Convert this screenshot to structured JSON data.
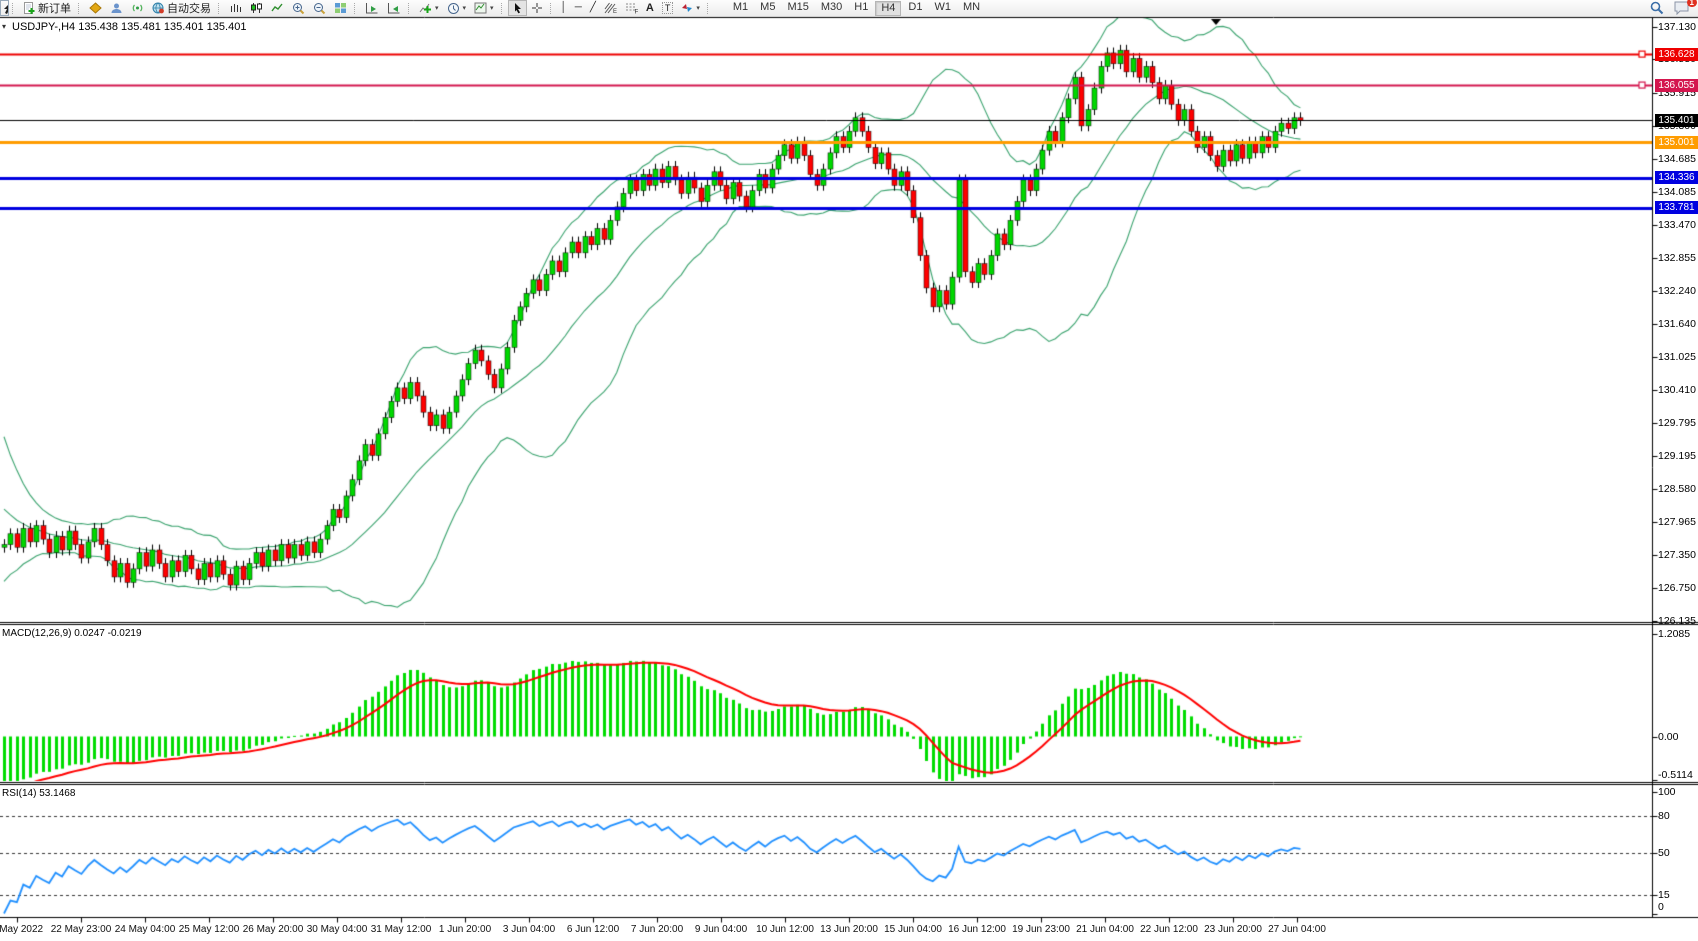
{
  "toolbar": {
    "new_order_label": "新订单",
    "auto_trading_label": "自动交易",
    "timeframes": [
      "M1",
      "M5",
      "M15",
      "M30",
      "H1",
      "H4",
      "D1",
      "W1",
      "MN"
    ],
    "active_timeframe": "H4",
    "chat_badge": "1"
  },
  "chart": {
    "title": "USDJPY-,H4 135.438 135.481 135.401 135.401",
    "macd_label": "MACD(12,26,9) 0.0247 -0.0219",
    "rsi_label": "RSI(14) 53.1468"
  },
  "chart_data": {
    "type": "candlestick",
    "symbol": "USDJPY-",
    "timeframe": "H4",
    "title": "USDJPY-,H4",
    "ohlc_display": {
      "open": "135.438",
      "high": "135.481",
      "low": "135.401",
      "close": "135.401"
    },
    "price_range": [
      126.135,
      137.13
    ],
    "price_axis_ticks": [
      137.13,
      136.53,
      135.915,
      135.3,
      134.685,
      134.085,
      133.47,
      132.855,
      132.24,
      131.64,
      131.025,
      130.41,
      129.795,
      129.195,
      128.58,
      127.965,
      127.35,
      126.75,
      126.135
    ],
    "current_price": {
      "value": 135.401,
      "label": "135.401",
      "color": "#000000"
    },
    "levels": [
      {
        "price": 136.628,
        "label": "136.628",
        "color": "#ee0000",
        "width": 2,
        "handle": true
      },
      {
        "price": 136.055,
        "label": "136.055",
        "color": "#d4164e",
        "width": 2,
        "handle": true
      },
      {
        "price": 135.001,
        "label": "135.001",
        "color": "#ff9c00",
        "width": 3,
        "handle": false
      },
      {
        "price": 134.336,
        "label": "134.336",
        "color": "#0000e0",
        "width": 3,
        "handle": false
      },
      {
        "price": 133.781,
        "label": "133.781",
        "color": "#0000e0",
        "width": 3,
        "handle": false
      }
    ],
    "x_axis_labels": [
      "9 May 2022",
      "22 May 23:00",
      "24 May 04:00",
      "25 May 12:00",
      "26 May 20:00",
      "30 May 04:00",
      "31 May 12:00",
      "1 Jun 20:00",
      "3 Jun 04:00",
      "6 Jun 12:00",
      "7 Jun 20:00",
      "9 Jun 04:00",
      "10 Jun 12:00",
      "13 Jun 20:00",
      "15 Jun 04:00",
      "16 Jun 12:00",
      "19 Jun 23:00",
      "21 Jun 04:00",
      "22 Jun 12:00",
      "23 Jun 20:00",
      "27 Jun 04:00"
    ],
    "seed_closes": [
      130.3,
      129.9,
      129.5,
      129.2,
      128.9,
      128.65,
      128.45,
      128.3,
      128.15,
      128.05,
      127.95,
      127.9,
      127.85,
      127.8,
      127.75,
      127.7,
      127.7,
      127.65,
      127.6,
      127.6
    ],
    "closes": [
      127.55,
      127.75,
      127.5,
      127.85,
      127.6,
      127.9,
      127.65,
      127.4,
      127.7,
      127.45,
      127.8,
      127.55,
      127.3,
      127.6,
      127.85,
      127.55,
      127.25,
      126.95,
      127.2,
      126.85,
      127.1,
      127.4,
      127.15,
      127.45,
      127.2,
      126.95,
      127.25,
      127.05,
      127.35,
      127.1,
      126.9,
      127.2,
      126.95,
      127.25,
      127.0,
      126.8,
      127.15,
      126.9,
      127.2,
      127.4,
      127.15,
      127.45,
      127.25,
      127.55,
      127.3,
      127.55,
      127.35,
      127.6,
      127.4,
      127.65,
      127.9,
      128.2,
      128.05,
      128.45,
      128.75,
      129.1,
      129.4,
      129.2,
      129.6,
      129.9,
      130.2,
      130.45,
      130.25,
      130.55,
      130.3,
      130.0,
      129.75,
      129.95,
      129.7,
      130.0,
      130.3,
      130.6,
      130.9,
      131.15,
      130.95,
      130.7,
      130.45,
      130.8,
      131.2,
      131.7,
      131.95,
      132.2,
      132.45,
      132.25,
      132.55,
      132.8,
      132.6,
      132.95,
      133.15,
      132.95,
      133.25,
      133.1,
      133.4,
      133.2,
      133.55,
      133.8,
      134.05,
      134.3,
      134.1,
      134.4,
      134.2,
      134.5,
      134.25,
      134.55,
      134.3,
      134.05,
      134.35,
      134.15,
      133.9,
      134.2,
      134.45,
      134.2,
      133.95,
      134.25,
      134.0,
      133.8,
      134.1,
      134.4,
      134.15,
      134.5,
      134.75,
      134.95,
      134.7,
      135.0,
      134.75,
      134.4,
      134.2,
      134.5,
      134.8,
      135.1,
      134.9,
      135.2,
      135.45,
      135.2,
      134.9,
      134.6,
      134.8,
      134.5,
      134.2,
      134.45,
      134.1,
      133.6,
      132.9,
      132.3,
      131.95,
      132.25,
      132.0,
      132.5,
      134.3,
      132.6,
      132.4,
      132.75,
      132.55,
      132.9,
      133.3,
      133.1,
      133.55,
      133.9,
      134.3,
      134.1,
      134.5,
      134.85,
      135.2,
      135.0,
      135.45,
      135.8,
      136.2,
      135.3,
      135.6,
      136.0,
      136.4,
      136.65,
      136.45,
      136.7,
      136.3,
      136.55,
      136.2,
      136.4,
      136.1,
      135.8,
      136.05,
      135.7,
      135.4,
      135.6,
      135.2,
      134.9,
      135.1,
      134.75,
      134.55,
      134.85,
      134.65,
      134.95,
      134.7,
      135.0,
      134.8,
      135.1,
      134.9,
      135.2,
      135.35,
      135.25,
      135.45,
      135.4
    ],
    "bollinger": {
      "period": 20,
      "deviation": 2,
      "color": "#3aa36e"
    },
    "macd": {
      "fast": 12,
      "slow": 26,
      "signal_period": 9,
      "current_main": 0.0247,
      "current_signal": -0.0219,
      "range": [
        -0.5114,
        1.2085
      ],
      "axis_ticks": [
        {
          "value": 1.2085,
          "label": "1.2085"
        },
        {
          "value": 0,
          "label": "0.00"
        },
        {
          "value": -0.5114,
          "label": "-0.5114"
        }
      ],
      "histogram_color": "#00dc00",
      "signal_color": "#ff0000"
    },
    "rsi": {
      "period": 14,
      "current": 53.1468,
      "range": [
        0,
        100
      ],
      "axis_ticks": [
        {
          "value": 100,
          "label": "100"
        },
        {
          "value": 80,
          "label": "80"
        },
        {
          "value": 50,
          "label": "50"
        },
        {
          "value": 15,
          "label": "15"
        },
        {
          "value": 0,
          "label": "0"
        }
      ],
      "dashed_levels": [
        80,
        50,
        15
      ],
      "line_color": "#2090ff"
    },
    "candle_up_color": "#00d800",
    "candle_down_color": "#ff0000"
  }
}
